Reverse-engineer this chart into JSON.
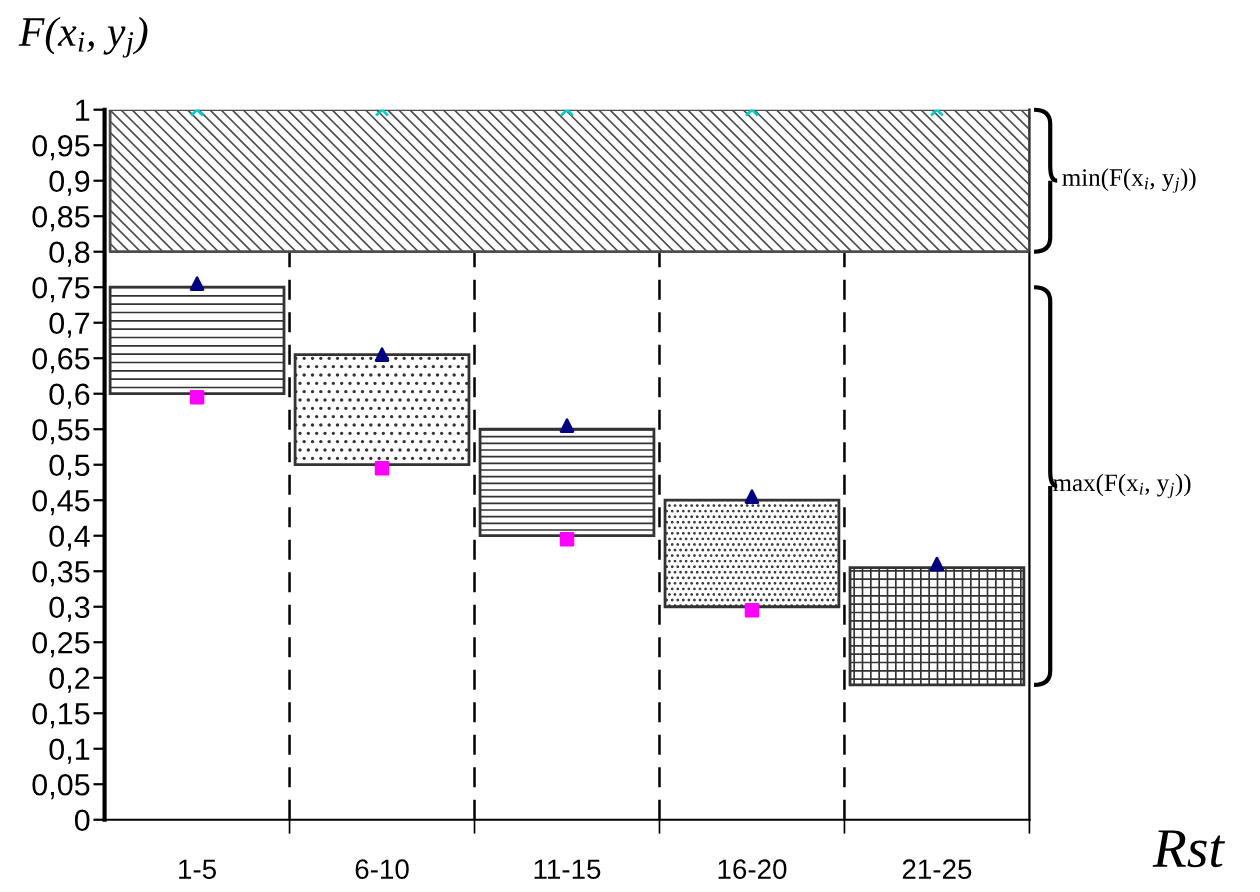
{
  "chart_data": {
    "type": "bar",
    "ylabel": "F(x$_{i}$, y$_{j}$)",
    "xlabel": "Rst",
    "categories": [
      "1-5",
      "6-10",
      "11-15",
      "16-20",
      "21-25"
    ],
    "base": [
      0.6,
      0.5,
      0.4,
      0.3,
      0.19
    ],
    "values": [
      0.15,
      0.155,
      0.15,
      0.15,
      0.165
    ],
    "colors": [
      "#333333",
      "#333333",
      "#333333",
      "#333333",
      "#333333"
    ],
    "series": [
      {
        "type": "scatter",
        "marker": "triangle",
        "color": "#000080",
        "values": [
          0.755,
          0.655,
          0.555,
          0.455,
          0.36
        ]
      },
      {
        "type": "scatter",
        "marker": "square",
        "color": "#ff00ff",
        "values": [
          0.595,
          0.495,
          0.395,
          0.295,
          null
        ]
      },
      {
        "type": "scatter",
        "marker": "cross",
        "color": "#00cccc",
        "values": [
          1,
          1,
          1,
          1,
          1
        ]
      }
    ],
    "bands": [
      {
        "axis": "y",
        "from": 0.8,
        "to": 1,
        "color": "#4d4d4d",
        "label": "min(F(x$_{i}$, y$_{j}$))"
      }
    ],
    "annotations": [
      "max(F(x$_{i}$, y$_{j}$))"
    ],
    "ylim": [
      0,
      1
    ],
    "yticks": [
      0,
      {
        "value": 0.05,
        "label": "0,05"
      },
      {
        "value": 0.1,
        "label": "0,1"
      },
      {
        "value": 0.15,
        "label": "0,15"
      },
      {
        "value": 0.2,
        "label": "0,2"
      },
      {
        "value": 0.25,
        "label": "0,25"
      },
      {
        "value": 0.3,
        "label": "0,3"
      },
      {
        "value": 0.35,
        "label": "0,35"
      },
      {
        "value": 0.4,
        "label": "0,4"
      },
      {
        "value": 0.45,
        "label": "0,45"
      },
      {
        "value": 0.5,
        "label": "0,5"
      },
      {
        "value": 0.55,
        "label": "0,55"
      },
      {
        "value": 0.6,
        "label": "0,6"
      },
      {
        "value": 0.65,
        "label": "0,65"
      },
      {
        "value": 0.7,
        "label": "0,7"
      },
      {
        "value": 0.75,
        "label": "0,75"
      },
      {
        "value": 0.8,
        "label": "0,8"
      },
      {
        "value": 0.85,
        "label": "0,85"
      },
      {
        "value": 0.9,
        "label": "0,9"
      },
      {
        "value": 0.95,
        "label": "0,95"
      },
      1
    ],
    "grid": "x",
    "line_style": "dashed",
    "legend": false
  }
}
